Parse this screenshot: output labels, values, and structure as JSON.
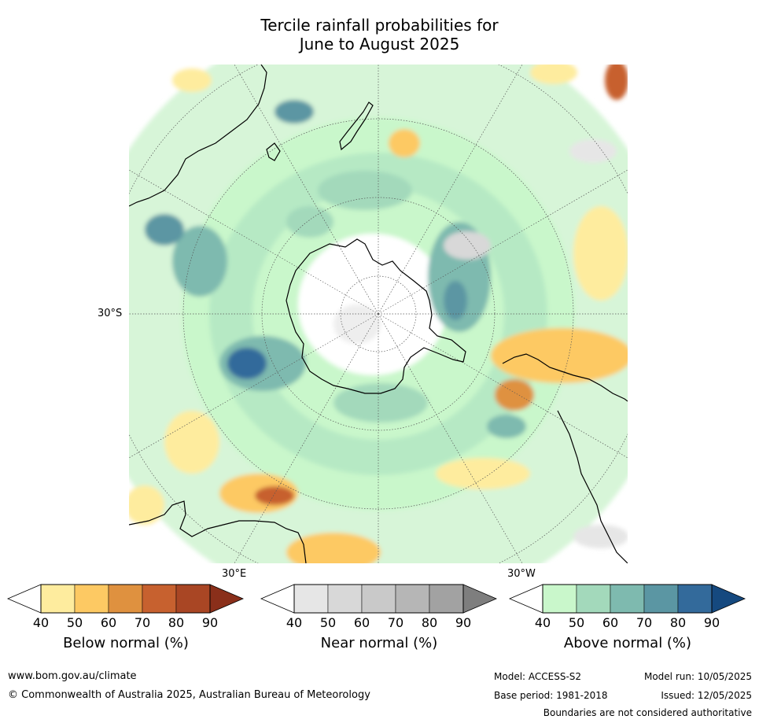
{
  "title": {
    "line1": "Tercile rainfall probabilities for",
    "line2": "June to August 2025"
  },
  "map": {
    "projection": "south polar stereographic",
    "lat_label": "30°S",
    "lon_labels": [
      "30°E",
      "30°W"
    ],
    "landmasses": [
      "Antarctica",
      "Australia",
      "New Zealand",
      "South America",
      "Africa"
    ]
  },
  "colorbars": [
    {
      "label": "Below normal (%)",
      "ticks": [
        "40",
        "50",
        "60",
        "70",
        "80",
        "90"
      ],
      "colors": [
        "#ffffff",
        "#feec9e",
        "#fdc963",
        "#df913f",
        "#c7612f",
        "#a94624",
        "#8a2f1a"
      ]
    },
    {
      "label": "Near normal (%)",
      "ticks": [
        "40",
        "50",
        "60",
        "70",
        "80",
        "90"
      ],
      "colors": [
        "#ffffff",
        "#e6e6e6",
        "#d8d8d8",
        "#c9c9c9",
        "#b6b6b6",
        "#a2a2a2",
        "#7e7e7e"
      ]
    },
    {
      "label": "Above normal (%)",
      "ticks": [
        "40",
        "50",
        "60",
        "70",
        "80",
        "90"
      ],
      "colors": [
        "#ffffff",
        "#c9f7cb",
        "#a3d9bb",
        "#7ebaaf",
        "#5b96a3",
        "#336a9b",
        "#15497f"
      ]
    }
  ],
  "footer": {
    "website": "www.bom.gov.au/climate",
    "copyright": "© Commonwealth of Australia 2025, Australian Bureau of Meteorology",
    "model": "Model: ACCESS-S2",
    "model_run": "Model run: 10/05/2025",
    "base_period": "Base period: 1981-2018",
    "issued": "Issued: 12/05/2025",
    "disclaimer": "Boundaries are not considered authoritative"
  }
}
